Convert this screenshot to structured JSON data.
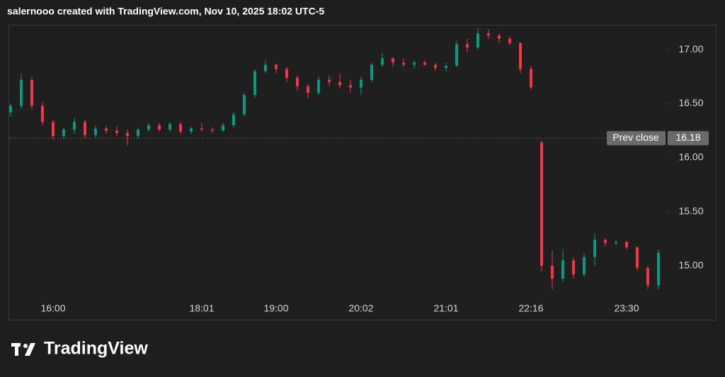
{
  "header": "salernooo created with TradingView.com, Nov 10, 2025 18:02 UTC-5",
  "logo": "TradingView",
  "chart_data": {
    "type": "candlestick",
    "categories": [
      null,
      null,
      null,
      null,
      "16:00",
      null,
      null,
      null,
      null,
      null,
      null,
      null,
      null,
      null,
      null,
      null,
      null,
      null,
      "18:01",
      null,
      null,
      null,
      null,
      null,
      null,
      "19:00",
      null,
      null,
      null,
      null,
      null,
      null,
      null,
      "20:02",
      null,
      null,
      null,
      null,
      null,
      null,
      null,
      "21:01",
      null,
      null,
      null,
      null,
      null,
      null,
      null,
      "22:16",
      null,
      null,
      null,
      null,
      null,
      null,
      null,
      null,
      "23:30",
      null,
      null,
      null
    ],
    "open": [
      16.42,
      16.48,
      16.72,
      16.48,
      16.33,
      16.2,
      16.26,
      16.33,
      16.21,
      16.27,
      16.25,
      16.23,
      16.2,
      16.26,
      16.3,
      16.26,
      16.31,
      16.24,
      16.27,
      16.26,
      16.25,
      16.3,
      16.4,
      16.58,
      16.8,
      16.86,
      16.82,
      16.74,
      16.66,
      16.6,
      16.72,
      16.7,
      16.67,
      16.65,
      16.72,
      16.86,
      16.92,
      16.88,
      16.86,
      16.88,
      16.86,
      16.83,
      16.85,
      17.05,
      17.02,
      17.15,
      17.13,
      17.1,
      17.06,
      16.82,
      16.14,
      15.0,
      14.88,
      15.05,
      14.92,
      15.08,
      15.24,
      15.21,
      15.22,
      15.17,
      14.98,
      14.82
    ],
    "high": [
      16.5,
      16.78,
      16.75,
      16.52,
      16.35,
      16.28,
      16.37,
      16.35,
      16.3,
      16.3,
      16.29,
      16.26,
      16.28,
      16.32,
      16.32,
      16.33,
      16.33,
      16.29,
      16.32,
      16.28,
      16.32,
      16.42,
      16.6,
      16.82,
      16.9,
      16.87,
      16.84,
      16.76,
      16.68,
      16.75,
      16.76,
      16.78,
      16.72,
      16.75,
      16.88,
      16.97,
      16.93,
      16.92,
      16.9,
      16.9,
      16.88,
      16.88,
      17.08,
      17.1,
      17.2,
      17.19,
      17.15,
      17.12,
      17.07,
      16.85,
      16.16,
      15.14,
      15.15,
      15.08,
      15.12,
      15.3,
      15.26,
      15.24,
      15.23,
      15.18,
      15.0,
      15.15
    ],
    "low": [
      16.38,
      16.45,
      16.45,
      16.3,
      16.17,
      16.18,
      16.22,
      16.18,
      16.18,
      16.22,
      16.2,
      16.11,
      16.18,
      16.24,
      16.24,
      16.24,
      16.22,
      16.22,
      16.24,
      16.23,
      16.24,
      16.28,
      16.38,
      16.55,
      16.78,
      16.78,
      16.7,
      16.62,
      16.55,
      16.58,
      16.66,
      16.64,
      16.6,
      16.58,
      16.7,
      16.84,
      16.84,
      16.84,
      16.83,
      16.85,
      16.8,
      16.8,
      16.84,
      16.98,
      17.0,
      17.1,
      17.06,
      17.04,
      16.78,
      16.63,
      14.95,
      14.78,
      14.85,
      14.88,
      14.9,
      15.0,
      15.18,
      15.19,
      15.15,
      14.95,
      14.78,
      14.78
    ],
    "close": [
      16.48,
      16.72,
      16.48,
      16.33,
      16.2,
      16.26,
      16.33,
      16.21,
      16.27,
      16.25,
      16.23,
      16.2,
      16.26,
      16.3,
      16.26,
      16.31,
      16.24,
      16.27,
      16.26,
      16.25,
      16.3,
      16.4,
      16.58,
      16.8,
      16.86,
      16.82,
      16.74,
      16.66,
      16.6,
      16.72,
      16.7,
      16.67,
      16.65,
      16.72,
      16.86,
      16.92,
      16.88,
      16.86,
      16.88,
      16.86,
      16.83,
      16.85,
      17.05,
      17.02,
      17.15,
      17.13,
      17.1,
      17.06,
      16.82,
      16.65,
      15.0,
      14.88,
      15.05,
      14.92,
      15.08,
      15.24,
      15.21,
      15.22,
      15.17,
      14.98,
      14.82,
      15.12
    ],
    "up_color": "#089981",
    "down_color": "#f23645",
    "ylim": [
      14.71,
      17.23
    ],
    "yticks": [
      {
        "value": 15,
        "label": "15.00"
      },
      {
        "value": 15.5,
        "label": "15.50"
      },
      {
        "value": 16,
        "label": "16.00"
      },
      {
        "value": 16.5,
        "label": "16.50"
      },
      {
        "value": 17,
        "label": "17.00"
      }
    ],
    "prev_close": {
      "label": "Prev close",
      "value": 16.18
    }
  }
}
